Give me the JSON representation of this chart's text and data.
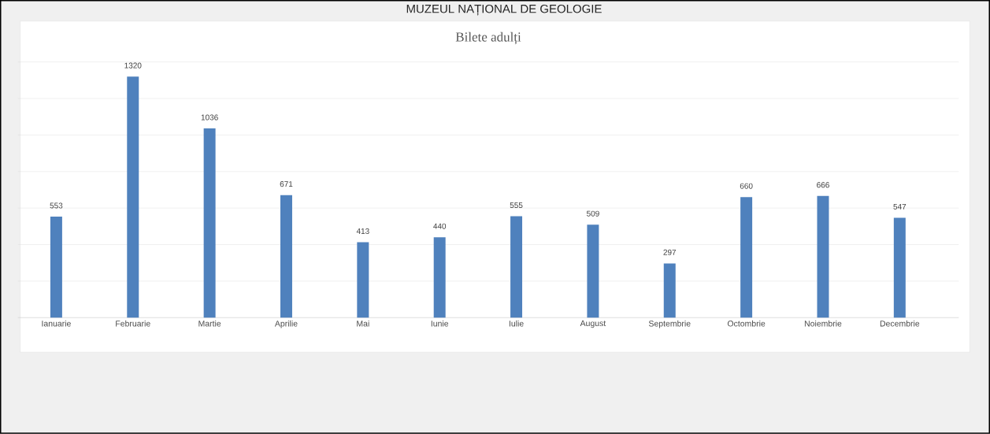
{
  "chart_data": {
    "type": "bar",
    "title": "Bilete adulți",
    "annotations": [
      "MUZEUL NAȚIONAL DE GEOLOGIE"
    ],
    "categories": [
      "Ianuarie",
      "Februarie",
      "Martie",
      "Aprilie",
      "Mai",
      "Iunie",
      "Iulie",
      "August",
      "Septembrie",
      "Octombrie",
      "Noiembrie",
      "Decembrie"
    ],
    "values": [
      553,
      1320,
      1036,
      671,
      413,
      440,
      555,
      509,
      297,
      660,
      666,
      547
    ],
    "color": "#4f81bd",
    "ylim": [
      0,
      1400
    ],
    "yticks": [
      {
        "value": 0,
        "label": null
      },
      {
        "value": 200,
        "label": null
      },
      {
        "value": 400,
        "label": null
      },
      {
        "value": 600,
        "label": null
      },
      {
        "value": 800,
        "label": null
      },
      {
        "value": 1000,
        "label": null
      },
      {
        "value": 1200,
        "label": null
      },
      {
        "value": 1400,
        "label": null
      }
    ],
    "grid": "y",
    "tick_labels": "x",
    "data_labels": true
  }
}
